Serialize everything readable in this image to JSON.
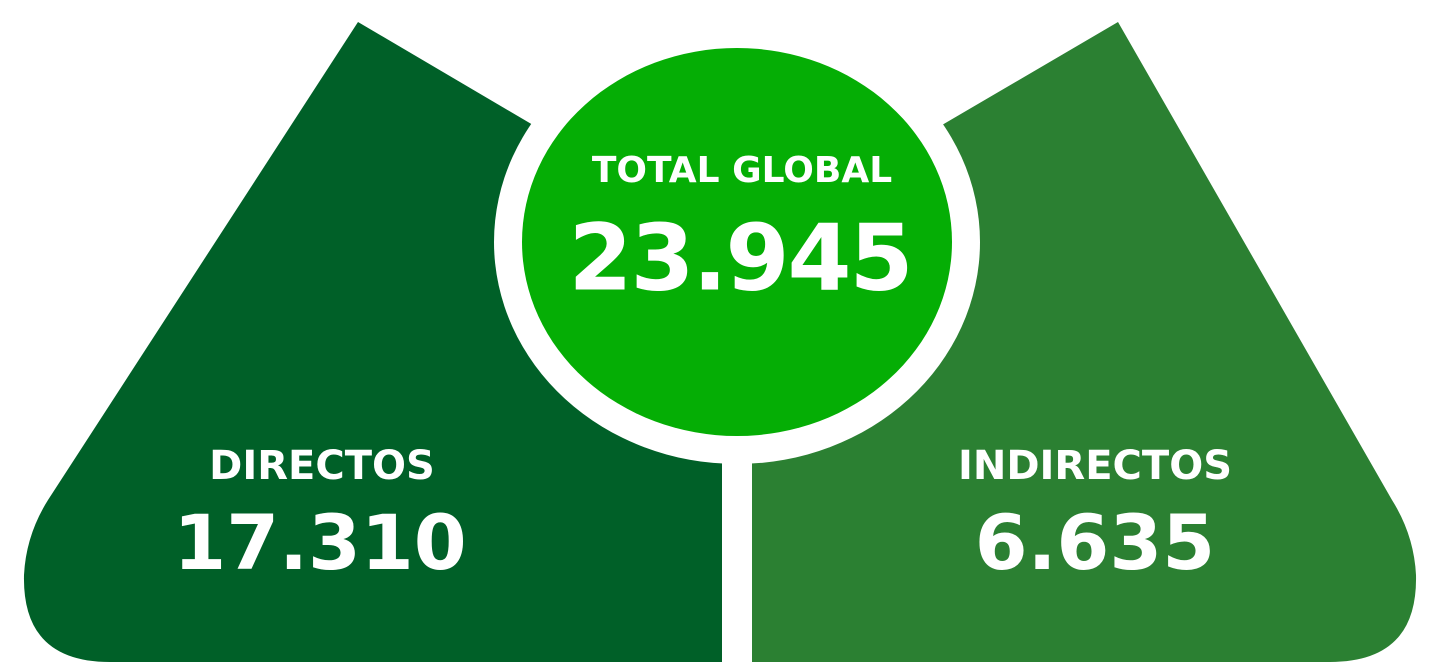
{
  "total": {
    "label": "TOTAL GLOBAL",
    "value": "23.945"
  },
  "left": {
    "label": "DIRECTOS",
    "value": "17.310"
  },
  "right": {
    "label": "INDIRECTOS",
    "value": "6.635"
  }
}
